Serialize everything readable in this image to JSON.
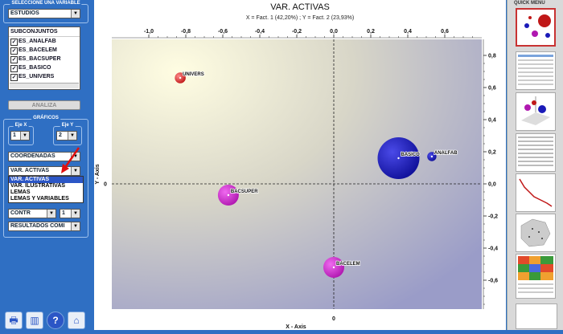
{
  "left_panel": {
    "variable_group_title": "SELECCIONE UNA VARIABLE",
    "variable_select": "ESTUDIOS",
    "subsets_header": "SUBCONJUNTOS",
    "subsets": [
      "ES_ANALFAB",
      "ES_BACELEM",
      "ES_BACSUPER",
      "ES_BASICO",
      "ES_UNIVERS"
    ],
    "analiza_button": "ANALIZA",
    "graficos_title": "GRÁFICOS",
    "eje_x_label": "Eje X",
    "eje_x_value": "1",
    "eje_y_label": "Eje Y",
    "eje_y_value": "2",
    "coordenadas_select": "COORDENADAS",
    "graph_type_select": "VAR. ACTIVAS",
    "graph_type_options": [
      "VAR. ACTIVAS",
      "VAR. ILUSTRATIVAS",
      "LEMAS",
      "LEMAS Y VARIABLES"
    ],
    "contr_select": "CONTR",
    "contr_num_select": "1",
    "resultados_select": "RESULTADOS COMI"
  },
  "chart_data": {
    "type": "scatter",
    "title": "VAR. ACTIVAS",
    "subtitle": "X = Fact. 1 (42,20%) ; Y = Fact. 2 (23,93%)",
    "xlabel": "X - Axis",
    "ylabel": "Y - Axis",
    "xlim": [
      -1.2,
      0.8
    ],
    "ylim": [
      -0.78,
      0.9
    ],
    "x_ticks": [
      -1.0,
      -0.8,
      -0.6,
      -0.4,
      -0.2,
      0.0,
      0.2,
      0.4,
      0.6
    ],
    "x_tick_labels": [
      "-1,0",
      "-0,8",
      "-0,6",
      "-0,4",
      "-0,2",
      "0,0",
      "0,2",
      "0,4",
      "0,6"
    ],
    "y_ticks": [
      0.8,
      0.6,
      0.4,
      0.2,
      0.0,
      -0.2,
      -0.4,
      -0.6
    ],
    "y_tick_labels": [
      "0,8",
      "0,6",
      "0,4",
      "0,2",
      "0,0",
      "-0,2",
      "-0,4",
      "-0,6"
    ],
    "x_origin_label": "0",
    "y_origin_label": "0",
    "points": [
      {
        "label": "UNIVERS",
        "x": -0.83,
        "y": 0.66,
        "size": 0.26,
        "color": "#cc2222"
      },
      {
        "label": "BASICO",
        "x": 0.35,
        "y": 0.16,
        "size": 1.0,
        "color": "#1a1ab8"
      },
      {
        "label": "ANALFAB",
        "x": 0.53,
        "y": 0.17,
        "size": 0.22,
        "color": "#1a1ab8"
      },
      {
        "label": "BACSUPER",
        "x": -0.57,
        "y": -0.07,
        "size": 0.5,
        "color": "#c020c0"
      },
      {
        "label": "BACELEM",
        "x": 0.0,
        "y": -0.52,
        "size": 0.5,
        "color": "#c020c0"
      }
    ],
    "grid": false,
    "legend": "none"
  },
  "quick_menu": {
    "title": "QUICK MENU",
    "thumbnails": [
      "bubble-chart",
      "data-table",
      "3d-scatter",
      "list-table",
      "scree-plot",
      "map",
      "heatmap-table"
    ]
  },
  "toolbar": {
    "icons": [
      "print-icon",
      "chart-icon",
      "help-icon",
      "home-icon"
    ]
  },
  "colors": {
    "panel_blue": "#2f6fc3",
    "selection_blue": "#2b56c6",
    "pointer_red": "#e01010"
  }
}
